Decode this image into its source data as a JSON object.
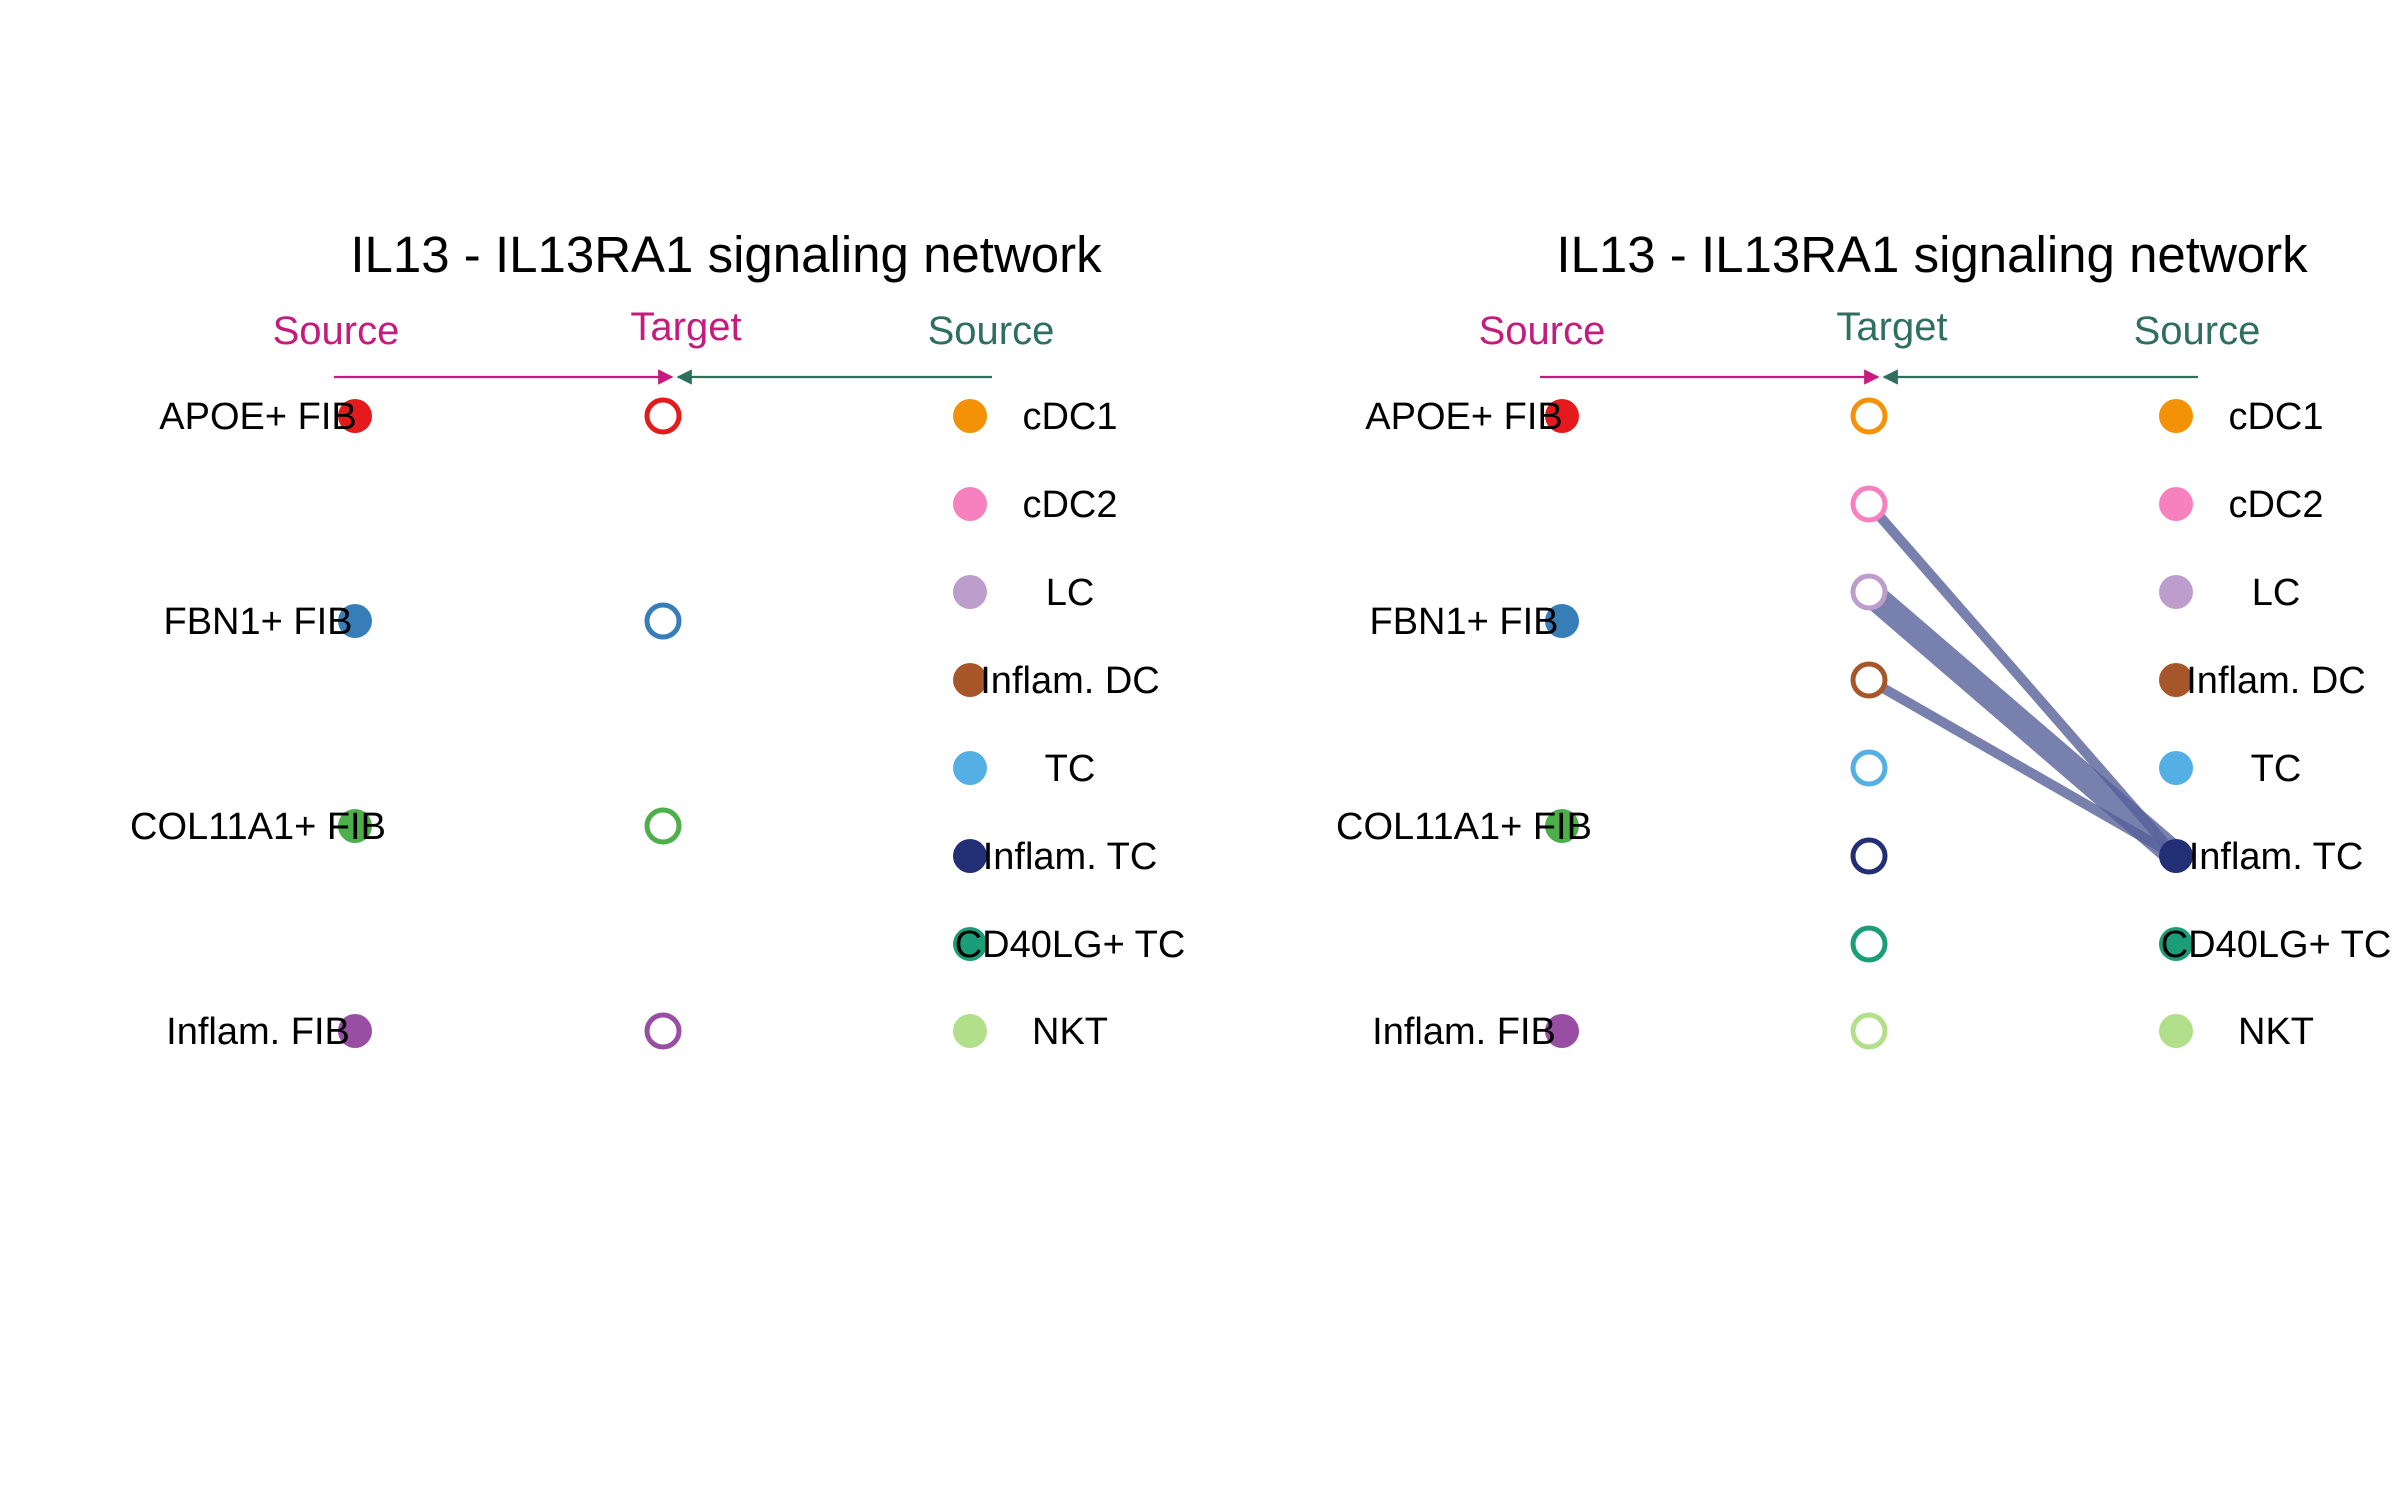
{
  "colors": {
    "magenta": "#C51B7D",
    "teal": "#2F6F5E",
    "edge": "#56609A",
    "text": "#000000"
  },
  "panels": [
    {
      "title": "IL13 - IL13RA1 signaling network",
      "header": {
        "source_left": "Source",
        "target": "Target",
        "source_right": "Source",
        "target_color": "magenta"
      },
      "left_sources": [
        {
          "label": "APOE+ FIB",
          "color": "#E41A1C"
        },
        {
          "label": "FBN1+ FIB",
          "color": "#377EB8"
        },
        {
          "label": "COL11A1+ FIB",
          "color": "#4DAF4A"
        },
        {
          "label": "Inflam. FIB",
          "color": "#984EA3"
        }
      ],
      "targets": [
        {
          "color": "#E41A1C"
        },
        {
          "color": "#377EB8"
        },
        {
          "color": "#4DAF4A"
        },
        {
          "color": "#984EA3"
        }
      ],
      "right_sources": [
        {
          "label": "cDC1",
          "color": "#F39207"
        },
        {
          "label": "cDC2",
          "color": "#F781BF"
        },
        {
          "label": "LC",
          "color": "#BC9DCC"
        },
        {
          "label": "Inflam. DC",
          "color": "#A65628"
        },
        {
          "label": "TC",
          "color": "#54B0E4"
        },
        {
          "label": "Inflam. TC",
          "color": "#222F75"
        },
        {
          "label": "CD40LG+ TC",
          "color": "#1B9E77"
        },
        {
          "label": "NKT",
          "color": "#B2DF8A"
        }
      ],
      "edges": []
    },
    {
      "title": "IL13 - IL13RA1 signaling network",
      "header": {
        "source_left": "Source",
        "target": "Target",
        "source_right": "Source",
        "target_color": "teal"
      },
      "left_sources": [
        {
          "label": "APOE+ FIB",
          "color": "#E41A1C"
        },
        {
          "label": "FBN1+ FIB",
          "color": "#377EB8"
        },
        {
          "label": "COL11A1+ FIB",
          "color": "#4DAF4A"
        },
        {
          "label": "Inflam. FIB",
          "color": "#984EA3"
        }
      ],
      "targets": [
        {
          "color": "#F39207"
        },
        {
          "color": "#F781BF"
        },
        {
          "color": "#BC9DCC"
        },
        {
          "color": "#A65628"
        },
        {
          "color": "#54B0E4"
        },
        {
          "color": "#222F75"
        },
        {
          "color": "#1B9E77"
        },
        {
          "color": "#B2DF8A"
        }
      ],
      "right_sources": [
        {
          "label": "cDC1",
          "color": "#F39207"
        },
        {
          "label": "cDC2",
          "color": "#F781BF"
        },
        {
          "label": "LC",
          "color": "#BC9DCC"
        },
        {
          "label": "Inflam. DC",
          "color": "#A65628"
        },
        {
          "label": "TC",
          "color": "#54B0E4"
        },
        {
          "label": "Inflam. TC",
          "color": "#222F75"
        },
        {
          "label": "CD40LG+ TC",
          "color": "#1B9E77"
        },
        {
          "label": "NKT",
          "color": "#B2DF8A"
        }
      ],
      "edges": [
        {
          "from": "Inflam. TC",
          "to_target": 1,
          "weight": 1
        },
        {
          "from": "Inflam. TC",
          "to_target": 2,
          "weight": 2.6
        },
        {
          "from": "Inflam. TC",
          "to_target": 3,
          "weight": 1
        }
      ]
    }
  ]
}
